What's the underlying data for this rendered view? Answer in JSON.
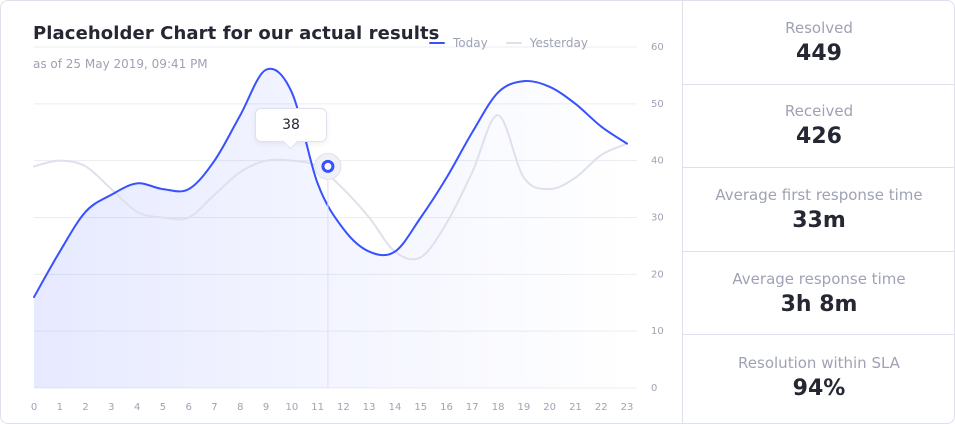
{
  "chart_data": {
    "type": "line",
    "title": "Placeholder Chart for our actual results",
    "subtitle": "as of 25 May 2019, 09:41 PM",
    "x": [
      0,
      1,
      2,
      3,
      4,
      5,
      6,
      7,
      8,
      9,
      10,
      11,
      12,
      13,
      14,
      15,
      16,
      17,
      18,
      19,
      20,
      21,
      22,
      23
    ],
    "series": [
      {
        "name": "Today",
        "color": "#3751ff",
        "values": [
          16,
          24,
          31,
          34,
          36,
          35,
          35,
          40,
          48,
          56,
          52,
          36,
          28,
          24,
          24,
          30,
          37,
          45,
          52,
          54,
          53,
          50,
          46,
          43
        ]
      },
      {
        "name": "Yesterday",
        "color": "#dfe0eb",
        "values": [
          39,
          40,
          39,
          35,
          31,
          30,
          30,
          34,
          38,
          40,
          40,
          39,
          35,
          30,
          24,
          23,
          29,
          38,
          48,
          37,
          35,
          37,
          41,
          43
        ]
      }
    ],
    "ylim": [
      0,
      60
    ],
    "yticks": [
      "0",
      "10",
      "20",
      "30",
      "40",
      "50",
      "60"
    ],
    "xticks": [
      "0",
      "1",
      "2",
      "3",
      "4",
      "5",
      "6",
      "7",
      "8",
      "9",
      "10",
      "11",
      "12",
      "13",
      "14",
      "15",
      "16",
      "17",
      "18",
      "19",
      "20",
      "21",
      "22",
      "23"
    ],
    "highlight": {
      "x": 11.4,
      "y": 39,
      "label": "38"
    },
    "grid": true,
    "legend_position": "top-right"
  },
  "stats": [
    {
      "label": "Resolved",
      "value": "449"
    },
    {
      "label": "Received",
      "value": "426"
    },
    {
      "label": "Average first response time",
      "value": "33m"
    },
    {
      "label": "Average response time",
      "value": "3h 8m"
    },
    {
      "label": "Resolution within SLA",
      "value": "94%"
    }
  ]
}
